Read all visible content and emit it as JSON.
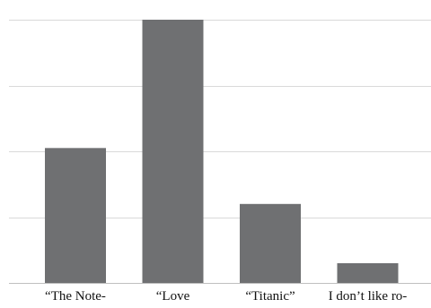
{
  "chart_data": {
    "type": "bar",
    "title": "",
    "xlabel": "",
    "ylabel": "",
    "categories": [
      "“The Note-",
      "“Love",
      "“Titanic”",
      "I don’t like ro-"
    ],
    "values": [
      41,
      80,
      24,
      6
    ],
    "ylim": [
      0,
      80
    ],
    "grid": true,
    "bar_color": "#6f7072",
    "grid_color": "#d9d9d9"
  }
}
